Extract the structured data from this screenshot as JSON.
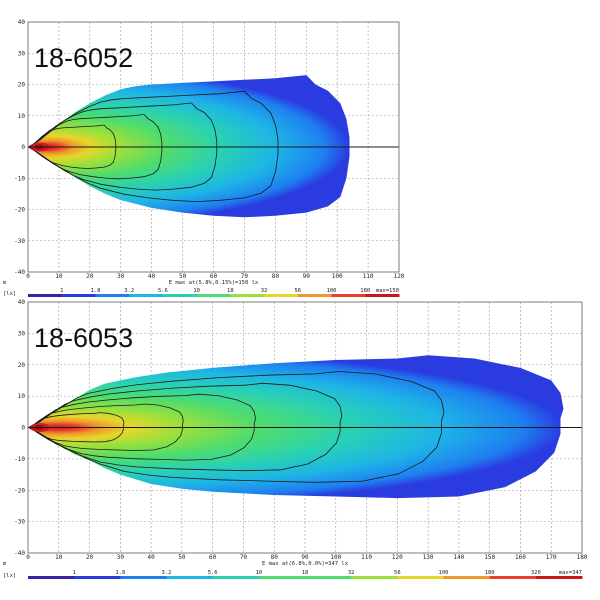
{
  "chart_data": [
    {
      "type": "heatmap",
      "title": "18-6052",
      "unit_x": "m",
      "unit_legend": "lx",
      "x_ticks": [
        0,
        10,
        20,
        30,
        40,
        50,
        60,
        70,
        80,
        90,
        100,
        110,
        120
      ],
      "y_ticks": [
        40,
        30,
        20,
        10,
        0,
        -10,
        -20,
        -30,
        -40
      ],
      "xlim": [
        0,
        120
      ],
      "ylim": [
        -40,
        40
      ],
      "emax_label": "E max at(5.8%,0.15%)=150 lx",
      "legend_ticks": [
        "1",
        "1.8",
        "3.2",
        "5.6",
        "10",
        "18",
        "32",
        "56",
        "100",
        "180"
      ],
      "legend_max_label": "max=150",
      "beam": {
        "upper": [
          [
            0,
            0
          ],
          [
            5,
            3
          ],
          [
            10,
            7
          ],
          [
            15,
            11
          ],
          [
            20,
            14
          ],
          [
            25,
            16.5
          ],
          [
            30,
            18.5
          ],
          [
            35,
            19.5
          ],
          [
            40,
            20
          ],
          [
            50,
            20.5
          ],
          [
            60,
            21
          ],
          [
            70,
            21.5
          ],
          [
            80,
            22
          ],
          [
            90,
            23
          ],
          [
            93,
            20
          ],
          [
            97,
            18
          ],
          [
            101,
            14
          ],
          [
            103,
            9
          ],
          [
            104,
            3
          ]
        ],
        "lower": [
          [
            0,
            0
          ],
          [
            5,
            -3
          ],
          [
            10,
            -6.5
          ],
          [
            15,
            -9.5
          ],
          [
            20,
            -12.5
          ],
          [
            25,
            -15
          ],
          [
            30,
            -17
          ],
          [
            40,
            -19.5
          ],
          [
            50,
            -21
          ],
          [
            60,
            -22
          ],
          [
            70,
            -22.5
          ],
          [
            80,
            -22
          ],
          [
            90,
            -21
          ],
          [
            97,
            -19
          ],
          [
            101,
            -16
          ],
          [
            103,
            -10
          ],
          [
            104,
            -3
          ]
        ]
      },
      "isolines": [
        0.3,
        0.45,
        0.62,
        0.8
      ]
    },
    {
      "type": "heatmap",
      "title": "18-6053",
      "unit_x": "m",
      "unit_legend": "lx",
      "x_ticks": [
        0,
        10,
        20,
        30,
        40,
        50,
        60,
        70,
        80,
        90,
        100,
        110,
        120,
        130,
        140,
        150,
        160,
        170,
        180
      ],
      "y_ticks": [
        40,
        30,
        20,
        10,
        0,
        -10,
        -20,
        -30,
        -40
      ],
      "xlim": [
        0,
        180
      ],
      "ylim": [
        -40,
        40
      ],
      "emax_label": "E max at(6.8%,0.0%)=347 lx",
      "legend_ticks": [
        "1",
        "1.8",
        "3.2",
        "5.6",
        "10",
        "18",
        "32",
        "56",
        "100",
        "180",
        "320"
      ],
      "legend_max_label": "max=347",
      "beam": {
        "upper": [
          [
            0,
            0
          ],
          [
            5,
            2.5
          ],
          [
            10,
            6
          ],
          [
            15,
            9
          ],
          [
            20,
            12
          ],
          [
            25,
            14
          ],
          [
            30,
            15
          ],
          [
            35,
            16
          ],
          [
            45,
            17.5
          ],
          [
            60,
            19
          ],
          [
            80,
            20.5
          ],
          [
            100,
            21.5
          ],
          [
            120,
            22
          ],
          [
            130,
            23
          ],
          [
            145,
            22
          ],
          [
            160,
            19
          ],
          [
            170,
            15
          ],
          [
            173,
            11
          ],
          [
            174,
            6
          ],
          [
            173,
            3
          ]
        ],
        "lower": [
          [
            0,
            0
          ],
          [
            5,
            -2.5
          ],
          [
            10,
            -5.5
          ],
          [
            15,
            -8.5
          ],
          [
            20,
            -10.5
          ],
          [
            25,
            -13
          ],
          [
            30,
            -15
          ],
          [
            40,
            -18
          ],
          [
            50,
            -19.5
          ],
          [
            60,
            -20.5
          ],
          [
            80,
            -21.5
          ],
          [
            100,
            -22
          ],
          [
            120,
            -22.5
          ],
          [
            140,
            -22
          ],
          [
            155,
            -19
          ],
          [
            165,
            -14
          ],
          [
            171,
            -8
          ],
          [
            173,
            -2
          ]
        ]
      },
      "isolines": [
        0.2,
        0.32,
        0.46,
        0.62,
        0.8
      ]
    }
  ],
  "colors": {
    "scale": [
      "#3a22a8",
      "#2a3be0",
      "#1e7ff0",
      "#1eb4e6",
      "#29d1b4",
      "#4fdc6e",
      "#9de03a",
      "#e6d62a",
      "#f0962a",
      "#e8402a",
      "#c8181e"
    ]
  }
}
